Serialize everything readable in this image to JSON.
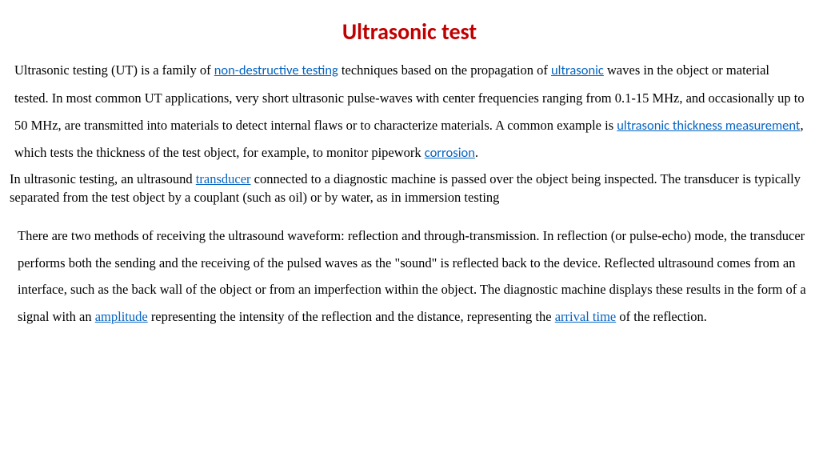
{
  "title": "Ultrasonic test",
  "colors": {
    "title": "#c00000",
    "link": "#0563c1",
    "text": "#000000",
    "background": "#ffffff"
  },
  "p1": {
    "t1": "Ultrasonic testing (UT) is a family of ",
    "link1": "non-destructive testing",
    "t2": " techniques based on the propagation of ",
    "link2": "ultrasonic",
    "t3": " waves in the object or material tested. In most common UT applications, very short ultrasonic pulse-waves with center frequencies ranging from 0.1-15 MHz, and occasionally up to 50 MHz, are transmitted into materials to detect internal flaws or to characterize materials. A common example is ",
    "link3": "ultrasonic thickness measurement",
    "t4": ", which tests the thickness of the test object, for example, to monitor pipework ",
    "link4": "corrosion",
    "t5": "."
  },
  "p2": {
    "t1": "In ultrasonic testing, an ultrasound ",
    "link1": "transducer",
    "t2": " connected to a diagnostic machine is passed over the object being inspected. The transducer is typically separated from the test object by a couplant (such as oil) or by water, as in immersion testing"
  },
  "p3": {
    "t1": "There are two methods of receiving the ultrasound waveform: reflection and through-transmission. In reflection (or pulse-echo) mode, the transducer performs both the sending and the receiving of the pulsed waves as the \"sound\" is reflected back to the device. Reflected ultrasound comes from an interface, such as the back wall of the object or from an imperfection within the object. The diagnostic machine displays these results in the form of a signal with an ",
    "link1": "amplitude",
    "t2": " representing the intensity of the reflection and the distance, representing the ",
    "link2": "arrival time",
    "t3": " of the reflection."
  }
}
